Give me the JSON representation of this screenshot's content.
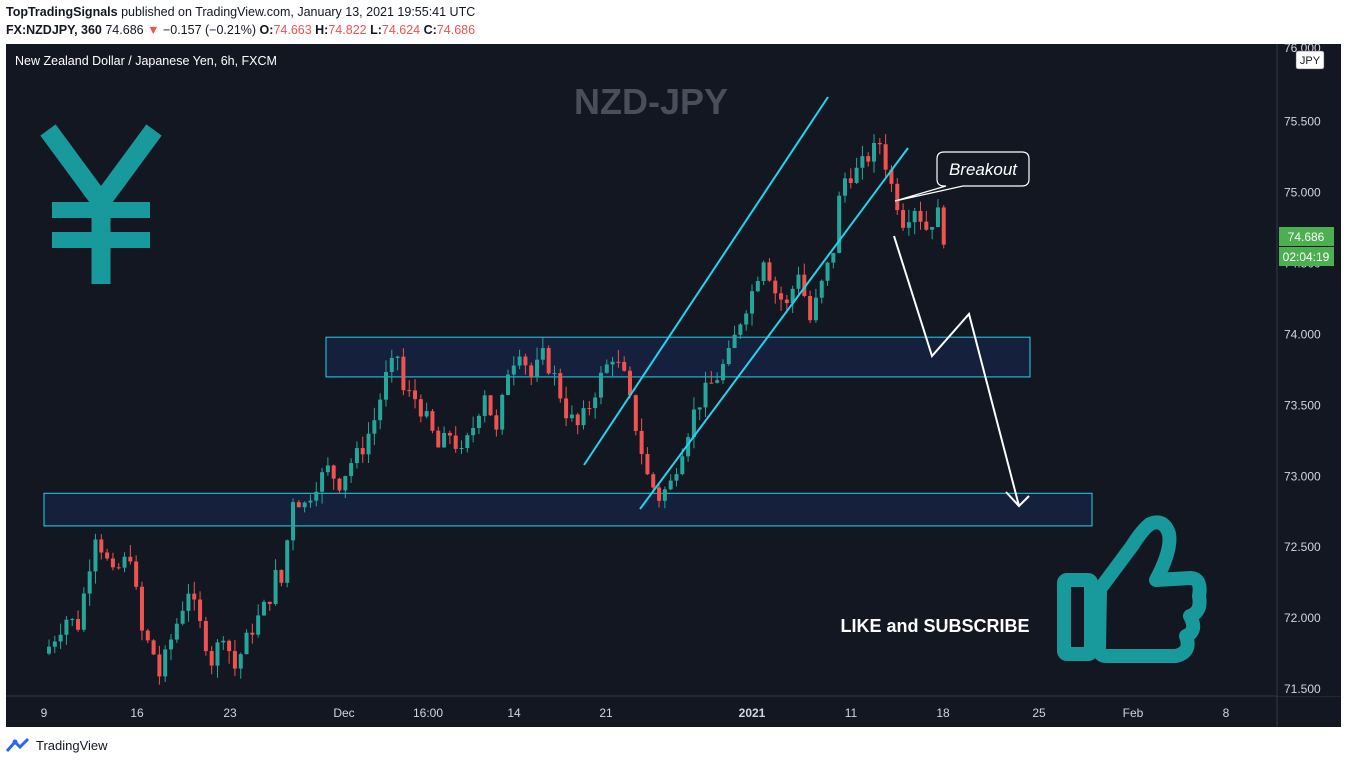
{
  "header": {
    "publisher": "TopTradingSignals",
    "published_text": " published on TradingView.com, January 13, 2021 19:55:41 UTC",
    "symbol": "FX:NZDJPY, 360",
    "last": "74.686",
    "change_arrow": "▼",
    "change": "−0.157 (−0.21%)",
    "o_label": "O:",
    "o": "74.663",
    "h_label": "H:",
    "h": "74.822",
    "l_label": "L:",
    "l": "74.624",
    "c_label": "C:",
    "c": "74.686"
  },
  "legend": "New Zealand Dollar / Japanese Yen, 6h, FXCM",
  "watermark": "NZD-JPY",
  "currency_badge": "JPY",
  "price_label": "74.686",
  "countdown_label": "02:04:19",
  "annotations": {
    "breakout": "Breakout",
    "cta": "LIKE and SUBSCRIBE"
  },
  "footer": {
    "brand": "TradingView"
  },
  "colors": {
    "background": "#131722",
    "up": "#26a69a",
    "down": "#ef5350",
    "channel": "#22d3ee",
    "accent": "#1da1a6",
    "price_tag": "#4caf50"
  },
  "icons": [
    "yen-icon",
    "thumbs-up-icon",
    "tradingview-logo-icon"
  ],
  "chart_data": {
    "type": "candlestick",
    "title": "New Zealand Dollar / Japanese Yen, 6h, FXCM",
    "y_ticks": [
      "75.500",
      "75.000",
      "74.500",
      "74.000",
      "73.500",
      "73.000",
      "72.500",
      "72.000",
      "71.500"
    ],
    "y_tick_top": "76.000",
    "x_ticks": [
      "9",
      "16",
      "23",
      "Dec",
      "16:00",
      "14",
      "21",
      "2021",
      "11",
      "18",
      "25",
      "Feb",
      "8"
    ],
    "ylim": [
      71.45,
      76.05
    ],
    "grid": false,
    "last_price": 74.686,
    "zones": [
      {
        "name": "upper-zone",
        "y_low": 73.7,
        "y_high": 73.98
      },
      {
        "name": "lower-zone",
        "y_low": 72.65,
        "y_high": 72.88
      }
    ],
    "channel": {
      "upper": [
        [
          73.05,
          75.68
        ]
      ],
      "lower": [
        [
          72.75,
          75.3
        ]
      ]
    },
    "close_path": [
      [
        0,
        71.8
      ],
      [
        3,
        72.0
      ],
      [
        5,
        71.95
      ],
      [
        8,
        72.6
      ],
      [
        11,
        72.3
      ],
      [
        14,
        72.45
      ],
      [
        16,
        71.9
      ],
      [
        18,
        71.75
      ],
      [
        19,
        71.6
      ],
      [
        21,
        71.85
      ],
      [
        24,
        72.2
      ],
      [
        26,
        71.95
      ],
      [
        28,
        71.7
      ],
      [
        30,
        71.9
      ],
      [
        32,
        71.65
      ],
      [
        34,
        71.85
      ],
      [
        36,
        72.0
      ],
      [
        38,
        72.15
      ],
      [
        39,
        72.3
      ],
      [
        40,
        72.25
      ],
      [
        41,
        72.55
      ],
      [
        42,
        72.85
      ],
      [
        44,
        72.8
      ],
      [
        46,
        72.95
      ],
      [
        48,
        73.05
      ],
      [
        50,
        72.95
      ],
      [
        52,
        73.1
      ],
      [
        54,
        73.2
      ],
      [
        56,
        73.4
      ],
      [
        58,
        73.7
      ],
      [
        60,
        73.85
      ],
      [
        61,
        73.6
      ],
      [
        63,
        73.55
      ],
      [
        65,
        73.4
      ],
      [
        67,
        73.2
      ],
      [
        69,
        73.3
      ],
      [
        71,
        73.15
      ],
      [
        73,
        73.35
      ],
      [
        75,
        73.6
      ],
      [
        77,
        73.3
      ],
      [
        79,
        73.75
      ],
      [
        81,
        73.9
      ],
      [
        83,
        73.7
      ],
      [
        85,
        73.85
      ],
      [
        87,
        73.7
      ],
      [
        89,
        73.45
      ],
      [
        91,
        73.35
      ],
      [
        93,
        73.5
      ],
      [
        95,
        73.7
      ],
      [
        97,
        73.85
      ],
      [
        99,
        73.7
      ],
      [
        101,
        73.35
      ],
      [
        103,
        73.0
      ],
      [
        105,
        72.85
      ],
      [
        107,
        72.95
      ],
      [
        109,
        73.2
      ],
      [
        111,
        73.45
      ],
      [
        113,
        73.6
      ],
      [
        115,
        73.7
      ],
      [
        117,
        73.85
      ],
      [
        119,
        74.1
      ],
      [
        121,
        74.3
      ],
      [
        123,
        74.55
      ],
      [
        125,
        74.3
      ],
      [
        127,
        74.2
      ],
      [
        129,
        74.45
      ],
      [
        131,
        74.1
      ],
      [
        133,
        74.35
      ],
      [
        135,
        74.6
      ],
      [
        136,
        74.95
      ],
      [
        137,
        75.1
      ],
      [
        139,
        75.15
      ],
      [
        141,
        75.25
      ],
      [
        143,
        75.35
      ],
      [
        145,
        75.05
      ],
      [
        147,
        74.8
      ],
      [
        149,
        74.9
      ],
      [
        151,
        74.75
      ],
      [
        153,
        74.85
      ],
      [
        154,
        74.69
      ]
    ]
  }
}
